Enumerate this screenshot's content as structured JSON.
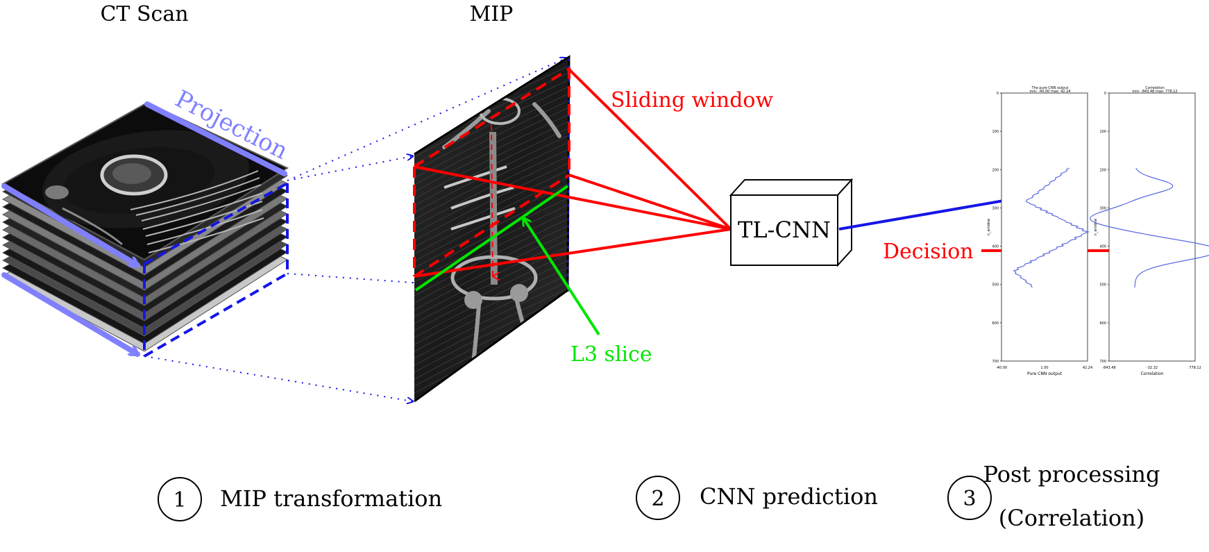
{
  "titles": {
    "ct_scan": "CT Scan",
    "mip": "MIP"
  },
  "labels": {
    "projection": "Projection",
    "sliding_window": "Sliding window",
    "l3_slice": "L3 slice",
    "tl_cnn": "TL-CNN",
    "decision": "Decision"
  },
  "steps": [
    {
      "number": "1",
      "label": "MIP transformation"
    },
    {
      "number": "2",
      "label": "CNN prediction"
    },
    {
      "number": "3",
      "label_line1": "Post processing",
      "label_line2": "(Correlation)"
    }
  ],
  "plots": {
    "left": {
      "title_line1": "The pure CNN output",
      "title_line2": "min: -40.00 max: 42.24",
      "xlabel": "Pure CNN output",
      "ylabel": "n_window",
      "x_ticks": [
        "-40.00",
        "1.00",
        "42.24"
      ],
      "y_ticks": [
        "0",
        "100",
        "200",
        "300",
        "400",
        "500",
        "600",
        "700"
      ]
    },
    "right": {
      "title_line1": "Correlation",
      "title_line2": "min: -843.48 max: 778.12",
      "xlabel": "Correlation",
      "ylabel": "n_window",
      "x_ticks": [
        "-843.48",
        "-32.32",
        "778.12"
      ],
      "y_ticks": [
        "0",
        "100",
        "200",
        "300",
        "400",
        "500",
        "600",
        "700"
      ]
    }
  },
  "colors": {
    "projection": "#8080ff",
    "blue_edges": "#1515e6",
    "sliding_window": "#ff0000",
    "l3_slice": "#00e600",
    "plot_line": "#5a6ae0"
  }
}
